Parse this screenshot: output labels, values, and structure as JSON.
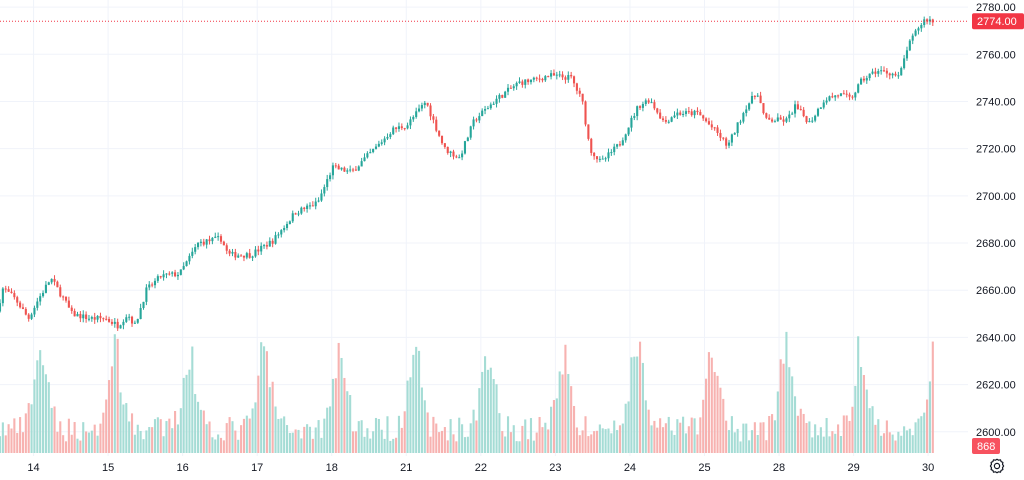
{
  "chart_data": {
    "type": "candlestick",
    "price_axis": {
      "ticks": [
        "2780.00",
        "2760.00",
        "2740.00",
        "2720.00",
        "2700.00",
        "2680.00",
        "2660.00",
        "2640.00",
        "2620.00",
        "2600.00"
      ],
      "tick_values": [
        2780,
        2760,
        2740,
        2720,
        2700,
        2680,
        2660,
        2640,
        2620,
        2600
      ],
      "range": [
        2591,
        2783
      ]
    },
    "time_axis": {
      "labels": [
        "14",
        "15",
        "16",
        "17",
        "18",
        "21",
        "22",
        "23",
        "24",
        "25",
        "28",
        "29",
        "30"
      ],
      "session_index": [
        0.45,
        1.45,
        2.45,
        3.45,
        4.45,
        5.45,
        6.45,
        7.45,
        8.45,
        9.45,
        10.45,
        11.45,
        12.45
      ]
    },
    "sessions": 12.68,
    "last_price": {
      "label": "2774.00",
      "value": 2774
    },
    "last_volume": {
      "label": "868"
    },
    "volume_max": 100,
    "anchors": [
      [
        0.0,
        2651
      ],
      [
        0.08,
        2661
      ],
      [
        0.25,
        2656
      ],
      [
        0.42,
        2648
      ],
      [
        0.55,
        2656
      ],
      [
        0.72,
        2665
      ],
      [
        0.9,
        2656
      ],
      [
        1.0,
        2650
      ],
      [
        1.25,
        2648
      ],
      [
        1.45,
        2648
      ],
      [
        1.62,
        2645
      ],
      [
        1.75,
        2650
      ],
      [
        1.85,
        2645
      ],
      [
        2.0,
        2660
      ],
      [
        2.2,
        2666
      ],
      [
        2.45,
        2667
      ],
      [
        2.7,
        2680
      ],
      [
        3.0,
        2682
      ],
      [
        3.1,
        2675
      ],
      [
        3.4,
        2675
      ],
      [
        3.7,
        2681
      ],
      [
        4.0,
        2693
      ],
      [
        4.3,
        2697
      ],
      [
        4.5,
        2712
      ],
      [
        4.75,
        2710
      ],
      [
        5.1,
        2721
      ],
      [
        5.3,
        2728
      ],
      [
        5.5,
        2730
      ],
      [
        5.75,
        2740
      ],
      [
        6.0,
        2720
      ],
      [
        6.2,
        2716
      ],
      [
        6.4,
        2732
      ],
      [
        6.7,
        2741
      ],
      [
        7.0,
        2748
      ],
      [
        7.2,
        2749
      ],
      [
        7.4,
        2751
      ],
      [
        7.7,
        2750
      ],
      [
        7.85,
        2740
      ],
      [
        7.95,
        2720
      ],
      [
        8.1,
        2714
      ],
      [
        8.35,
        2722
      ],
      [
        8.6,
        2738
      ],
      [
        8.75,
        2741
      ],
      [
        8.95,
        2731
      ],
      [
        9.1,
        2735
      ],
      [
        9.4,
        2735
      ],
      [
        9.65,
        2727
      ],
      [
        9.8,
        2721
      ],
      [
        10.05,
        2738
      ],
      [
        10.2,
        2744
      ],
      [
        10.3,
        2732
      ],
      [
        10.5,
        2732
      ],
      [
        10.6,
        2732
      ],
      [
        10.7,
        2738
      ],
      [
        10.9,
        2731
      ],
      [
        11.1,
        2741
      ],
      [
        11.3,
        2743
      ],
      [
        11.45,
        2741
      ],
      [
        11.6,
        2749
      ],
      [
        11.8,
        2753
      ],
      [
        12.0,
        2752
      ],
      [
        12.1,
        2750
      ],
      [
        12.2,
        2762
      ],
      [
        12.35,
        2771
      ],
      [
        12.45,
        2775
      ],
      [
        12.55,
        2774
      ]
    ]
  },
  "colors": {
    "up": "#26a69a",
    "down": "#ef5350",
    "up_volume": "#a5dcd5",
    "down_volume": "#f7b2b0",
    "grid": "#f0f3fa",
    "axis_text": "#131722",
    "price_badge": "#f23645",
    "volume_badge": "#f7525f"
  },
  "controls": {
    "settings_icon": "gear-icon"
  }
}
